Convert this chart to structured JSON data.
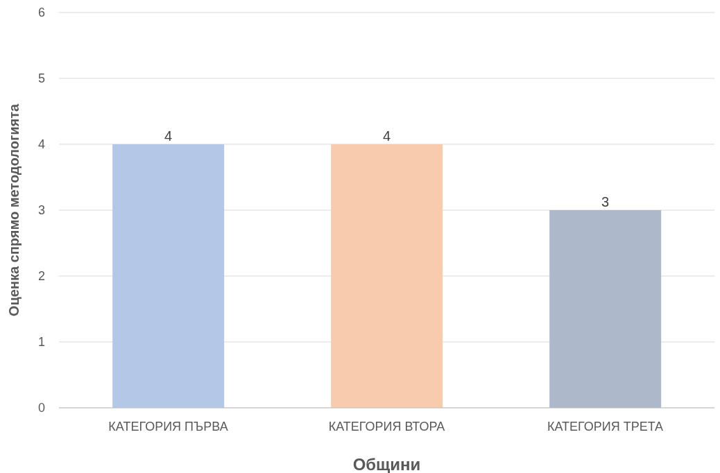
{
  "chart_data": {
    "type": "bar",
    "xlabel": "Общини",
    "ylabel": "Оценка спрямо методологията",
    "categories": [
      "КАТЕГОРИЯ ПЪРВА",
      "КАТЕГОРИЯ ВТОРА",
      "КАТЕГОРИЯ ТРЕТА"
    ],
    "values": [
      4,
      4,
      3
    ],
    "colors": [
      "#b4c7e7",
      "#f8cbad",
      "#adb9ca"
    ],
    "ylim": [
      0,
      6
    ],
    "yticks": [
      0,
      1,
      2,
      3,
      4,
      5,
      6
    ],
    "grid": "y",
    "data_labels": true
  }
}
